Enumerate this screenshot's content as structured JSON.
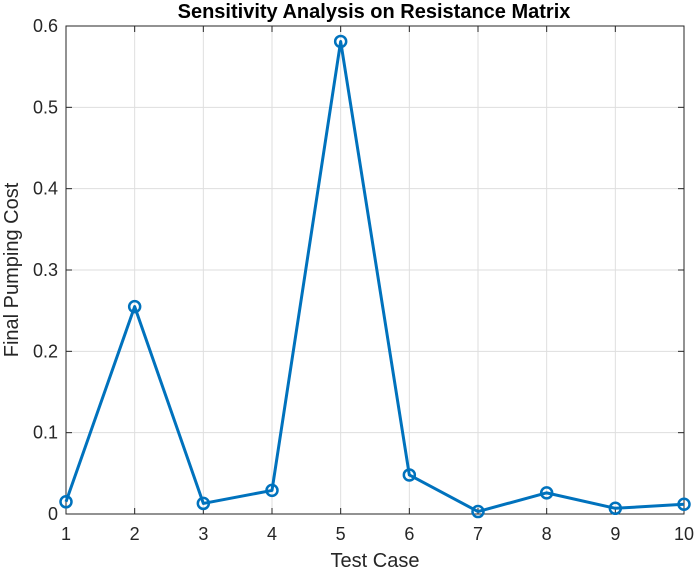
{
  "chart_data": {
    "type": "line",
    "title": "Sensitivity Analysis on Resistance Matrix",
    "xlabel": "Test Case",
    "ylabel": "Final Pumping Cost",
    "x": [
      1,
      2,
      3,
      4,
      5,
      6,
      7,
      8,
      9,
      10
    ],
    "xlim": [
      1,
      10
    ],
    "ylim": [
      0,
      0.6
    ],
    "x_ticks": [
      1,
      2,
      3,
      4,
      5,
      6,
      7,
      8,
      9,
      10
    ],
    "x_tick_labels": [
      "1",
      "2",
      "3",
      "4",
      "5",
      "6",
      "7",
      "8",
      "9",
      "10"
    ],
    "y_ticks": [
      0,
      0.1,
      0.2,
      0.3,
      0.4,
      0.5,
      0.6
    ],
    "y_tick_labels": [
      "0",
      "0.1",
      "0.2",
      "0.3",
      "0.4",
      "0.5",
      "0.6"
    ],
    "grid": true,
    "legend": "none",
    "series": [
      {
        "values": [
          0.015,
          0.255,
          0.013,
          0.029,
          0.581,
          0.048,
          0.003,
          0.026,
          0.007,
          0.012
        ],
        "color": "#0072BD",
        "marker": "circle"
      }
    ]
  }
}
